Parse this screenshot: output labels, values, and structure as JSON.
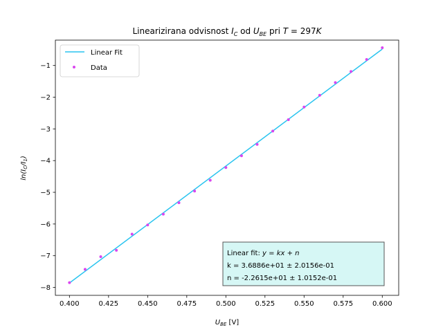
{
  "chart_data": {
    "type": "scatter",
    "title_parts": [
      "Linearizirana odvisnost ",
      "I",
      "C",
      " od ",
      "U",
      "BE",
      " pri ",
      "T",
      " = 297",
      "K"
    ],
    "xlabel_parts": [
      "U",
      "BE",
      " [V]"
    ],
    "ylabel_parts": [
      "ln(",
      "I",
      "C",
      "/",
      "I",
      "1",
      ")"
    ],
    "xlim": [
      0.391,
      0.6105
    ],
    "ylim": [
      -8.25,
      -0.2
    ],
    "x_ticks": [
      0.4,
      0.425,
      0.45,
      0.475,
      0.5,
      0.525,
      0.55,
      0.575,
      0.6
    ],
    "x_tick_labels": [
      "0.400",
      "0.425",
      "0.450",
      "0.475",
      "0.500",
      "0.525",
      "0.550",
      "0.575",
      "0.600"
    ],
    "y_ticks": [
      -8,
      -7,
      -6,
      -5,
      -4,
      -3,
      -2,
      -1
    ],
    "y_tick_labels": [
      "−8",
      "−7",
      "−6",
      "−5",
      "−4",
      "−3",
      "−2",
      "−1"
    ],
    "series": [
      {
        "name": "Data",
        "kind": "scatter",
        "color": "#d946ef",
        "x": [
          0.4,
          0.41,
          0.42,
          0.43,
          0.44,
          0.45,
          0.46,
          0.47,
          0.48,
          0.49,
          0.5,
          0.51,
          0.52,
          0.53,
          0.54,
          0.55,
          0.56,
          0.57,
          0.58,
          0.59,
          0.6
        ],
        "y": [
          -7.85,
          -7.43,
          -7.03,
          -6.83,
          -6.32,
          -6.03,
          -5.69,
          -5.33,
          -4.96,
          -4.62,
          -4.22,
          -3.85,
          -3.49,
          -3.07,
          -2.71,
          -2.31,
          -1.94,
          -1.54,
          -1.19,
          -0.81,
          -0.44
        ]
      },
      {
        "name": "Linear Fit",
        "kind": "line",
        "color": "#29c4ef",
        "slope": 36.886,
        "intercept": -22.615,
        "x": [
          0.4,
          0.6
        ]
      }
    ],
    "legend": {
      "placement": "upper-left",
      "entries": [
        "Linear Fit",
        "Data"
      ]
    },
    "annotation": {
      "line1_parts": [
        "Linear fit: ",
        "y",
        " = ",
        "kx",
        " + ",
        "n"
      ],
      "line2": "k = 3.6886e+01 ± 2.0156e-01",
      "line3": "n = -2.2615e+01 ± 1.0152e-01",
      "background": "#d6f7f5",
      "border": "#555555"
    },
    "grid": false
  }
}
